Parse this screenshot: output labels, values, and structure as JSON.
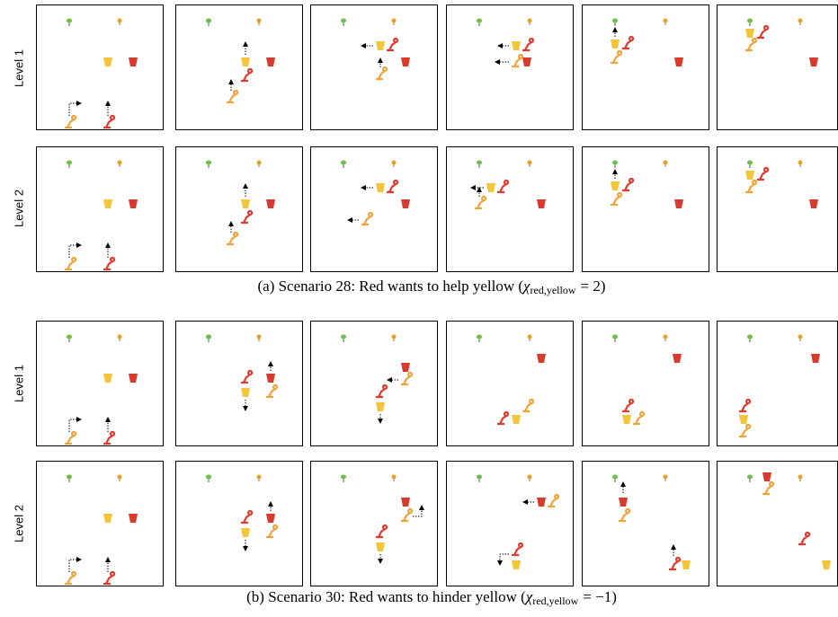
{
  "figure": {
    "row_labels": [
      "Level 1",
      "Level 2",
      "Level 1",
      "Level 2"
    ],
    "captions": [
      {
        "text": "(a) Scenario 28: Red wants to help yellow (",
        "symbol": "χ",
        "subscript": "red,yellow",
        "equation": "= 2)"
      },
      {
        "text": "(b) Scenario 30: Red wants to hinder yellow (",
        "symbol": "χ",
        "subscript": "red,yellow",
        "equation": "= −1)"
      }
    ]
  }
}
